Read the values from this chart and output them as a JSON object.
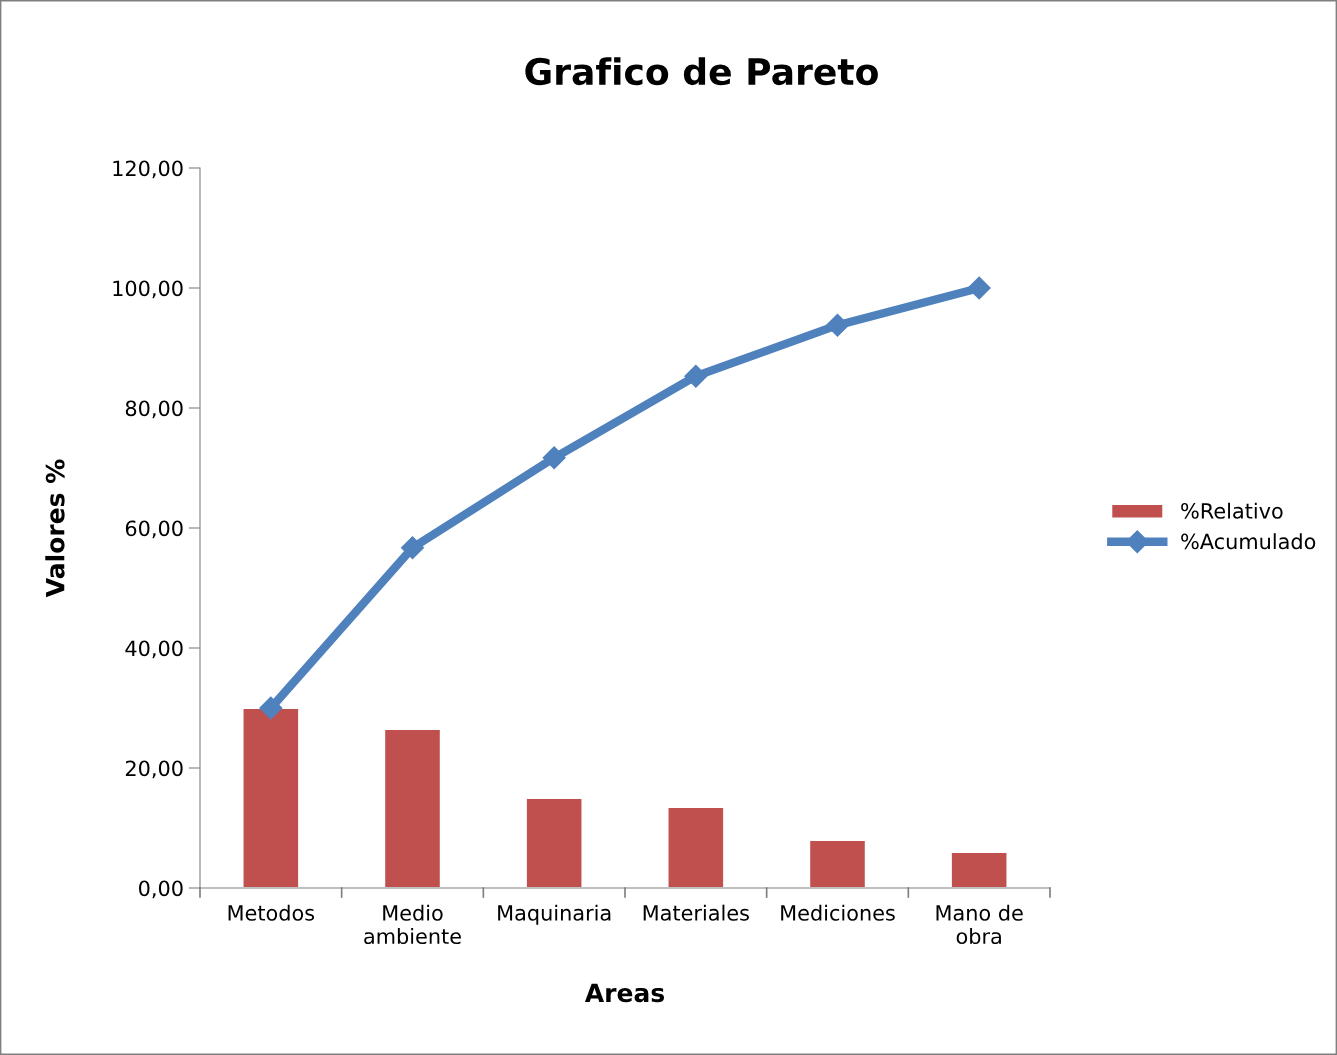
{
  "chart_data": {
    "type": "bar",
    "title": "Grafico de Pareto",
    "xlabel": "Areas",
    "ylabel": "Valores %",
    "categories": [
      "Metodos",
      "Medio\nambiente",
      "Maquinaria",
      "Materiales",
      "Mediciones",
      "Mano de\nobra"
    ],
    "series": [
      {
        "name": "%Relativo",
        "color": "#c0504d",
        "values": [
          30,
          26.5,
          15,
          13.5,
          8,
          6
        ]
      },
      {
        "name": "%Acumulado",
        "type": "line",
        "color": "#4f81bd",
        "marker": "diamond",
        "line_style": "solid",
        "values": [
          30,
          56.7,
          71.7,
          85.3,
          93.8,
          100
        ]
      }
    ],
    "ylim": [
      0,
      120
    ],
    "yticks": [
      {
        "value": 0,
        "label": "0,00"
      },
      {
        "value": 20,
        "label": "20,00"
      },
      {
        "value": 40,
        "label": "40,00"
      },
      {
        "value": 60,
        "label": "60,00"
      },
      {
        "value": 80,
        "label": "80,00"
      },
      {
        "value": 100,
        "label": "100,00"
      },
      {
        "value": 120,
        "label": "120,00"
      }
    ],
    "grid": false,
    "legend": "right"
  }
}
